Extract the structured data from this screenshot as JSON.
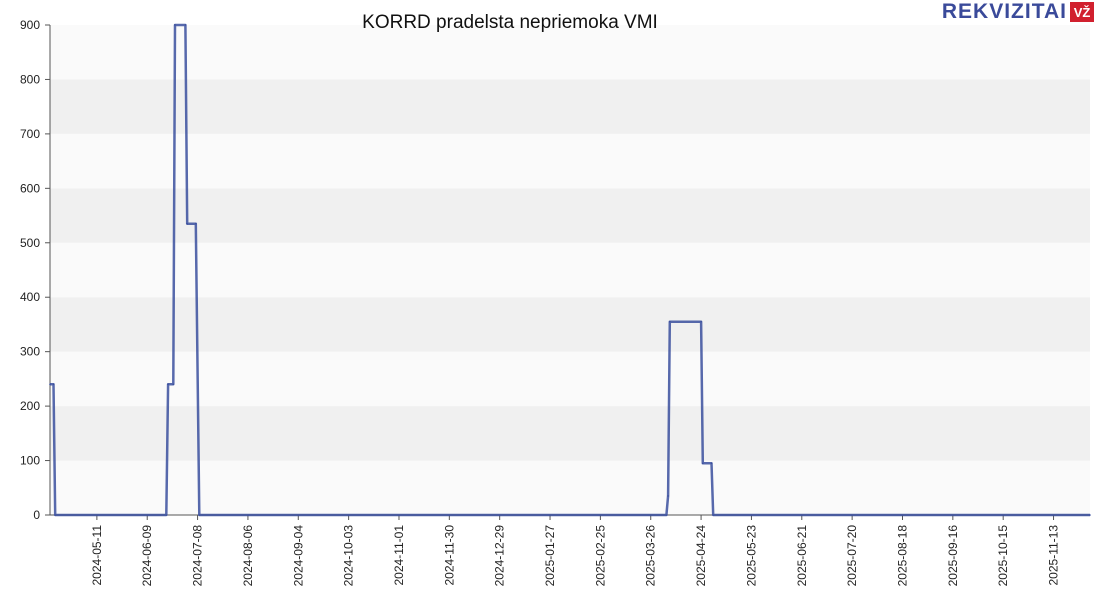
{
  "chart_data": {
    "type": "line",
    "title": "KORRD pradelsta nepriemoka VMI",
    "xlabel": "",
    "ylabel": "",
    "ylim": [
      0,
      900
    ],
    "yticks": [
      0,
      100,
      200,
      300,
      400,
      500,
      600,
      700,
      800,
      900
    ],
    "xlim": [
      "2024-04-14",
      "2025-12-04"
    ],
    "xticks": [
      "2024-05-11",
      "2024-06-09",
      "2024-07-08",
      "2024-08-06",
      "2024-09-04",
      "2024-10-03",
      "2024-11-01",
      "2024-11-30",
      "2024-12-29",
      "2025-01-27",
      "2025-02-25",
      "2025-03-26",
      "2025-04-24",
      "2025-05-23",
      "2025-06-21",
      "2025-07-20",
      "2025-08-18",
      "2025-09-16",
      "2025-10-15",
      "2025-11-13"
    ],
    "grid": "horizontal bands",
    "colors": {
      "line": "#3a4f9e",
      "band_light": "#fafafa",
      "band_dark": "#f0f0f0"
    },
    "series": [
      {
        "points": [
          [
            "2024-04-14",
            240
          ],
          [
            "2024-04-16",
            240
          ],
          [
            "2024-04-17",
            0
          ],
          [
            "2024-06-20",
            0
          ],
          [
            "2024-06-21",
            240
          ],
          [
            "2024-06-24",
            240
          ],
          [
            "2024-06-25",
            900
          ],
          [
            "2024-07-01",
            900
          ],
          [
            "2024-07-02",
            535
          ],
          [
            "2024-07-07",
            535
          ],
          [
            "2024-07-09",
            0
          ],
          [
            "2025-04-04",
            0
          ],
          [
            "2025-04-05",
            35
          ],
          [
            "2025-04-06",
            355
          ],
          [
            "2025-04-24",
            355
          ],
          [
            "2025-04-25",
            95
          ],
          [
            "2025-04-30",
            95
          ],
          [
            "2025-05-01",
            0
          ],
          [
            "2025-12-04",
            0
          ]
        ]
      }
    ]
  },
  "logo": {
    "text": "REKVIZITAI",
    "badge": "VŽ"
  }
}
